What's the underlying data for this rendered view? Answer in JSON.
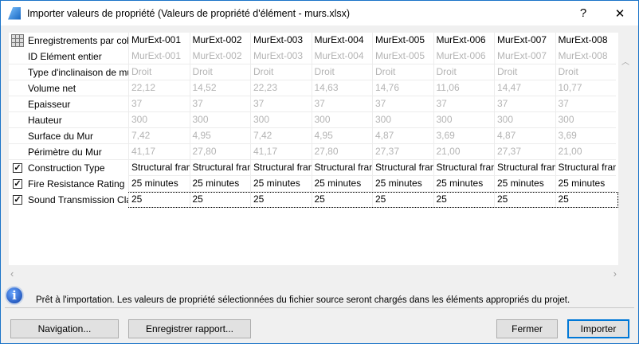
{
  "window": {
    "title": "Importer valeurs de propriété (Valeurs de propriété d'élément - murs.xlsx)",
    "help": "?",
    "close": "✕"
  },
  "grid": {
    "header_label": "Enregistrements par colonne",
    "columns": [
      "MurExt-001",
      "MurExt-002",
      "MurExt-003",
      "MurExt-004",
      "MurExt-005",
      "MurExt-006",
      "MurExt-007",
      "MurExt-008"
    ],
    "rows": [
      {
        "label": "ID Elément entier",
        "checkbox": false,
        "readonly": true,
        "values": [
          "MurExt-001",
          "MurExt-002",
          "MurExt-003",
          "MurExt-004",
          "MurExt-005",
          "MurExt-006",
          "MurExt-007",
          "MurExt-008"
        ]
      },
      {
        "label": "Type d'inclinaison de mur",
        "checkbox": false,
        "readonly": true,
        "values": [
          "Droit",
          "Droit",
          "Droit",
          "Droit",
          "Droit",
          "Droit",
          "Droit",
          "Droit"
        ]
      },
      {
        "label": "Volume net",
        "checkbox": false,
        "readonly": true,
        "values": [
          "22,12",
          "14,52",
          "22,23",
          "14,63",
          "14,76",
          "11,06",
          "14,47",
          "10,77"
        ]
      },
      {
        "label": "Epaisseur",
        "checkbox": false,
        "readonly": true,
        "values": [
          "37",
          "37",
          "37",
          "37",
          "37",
          "37",
          "37",
          "37"
        ]
      },
      {
        "label": "Hauteur",
        "checkbox": false,
        "readonly": true,
        "values": [
          "300",
          "300",
          "300",
          "300",
          "300",
          "300",
          "300",
          "300"
        ]
      },
      {
        "label": "Surface du Mur",
        "checkbox": false,
        "readonly": true,
        "values": [
          "7,42",
          "4,95",
          "7,42",
          "4,95",
          "4,87",
          "3,69",
          "4,87",
          "3,69"
        ]
      },
      {
        "label": "Périmètre du Mur",
        "checkbox": false,
        "readonly": true,
        "values": [
          "41,17",
          "27,80",
          "41,17",
          "27,80",
          "27,37",
          "21,00",
          "27,37",
          "21,00"
        ]
      },
      {
        "label": "Construction Type",
        "checkbox": true,
        "readonly": false,
        "values": [
          "Structural frame",
          "Structural frame",
          "Structural frame",
          "Structural frame",
          "Structural frame",
          "Structural frame",
          "Structural frame",
          "Structural frame"
        ]
      },
      {
        "label": "Fire Resistance Rating",
        "checkbox": true,
        "readonly": false,
        "values": [
          "25 minutes",
          "25 minutes",
          "25 minutes",
          "25 minutes",
          "25 minutes",
          "25 minutes",
          "25 minutes",
          "25 minutes"
        ]
      },
      {
        "label": "Sound Transmission Class",
        "checkbox": true,
        "readonly": false,
        "focused": true,
        "values": [
          "25",
          "25",
          "25",
          "25",
          "25",
          "25",
          "25",
          "25"
        ]
      }
    ]
  },
  "status": {
    "message": "Prêt à l'importation. Les valeurs de propriété sélectionnées du fichier source seront chargés dans les éléments appropriés du projet."
  },
  "buttons": {
    "navigation": "Navigation...",
    "save_report": "Enregistrer rapport...",
    "close": "Fermer",
    "import": "Importer"
  },
  "colors": {
    "accent": "#0078d7",
    "readonly_text": "#b4b4b4"
  }
}
